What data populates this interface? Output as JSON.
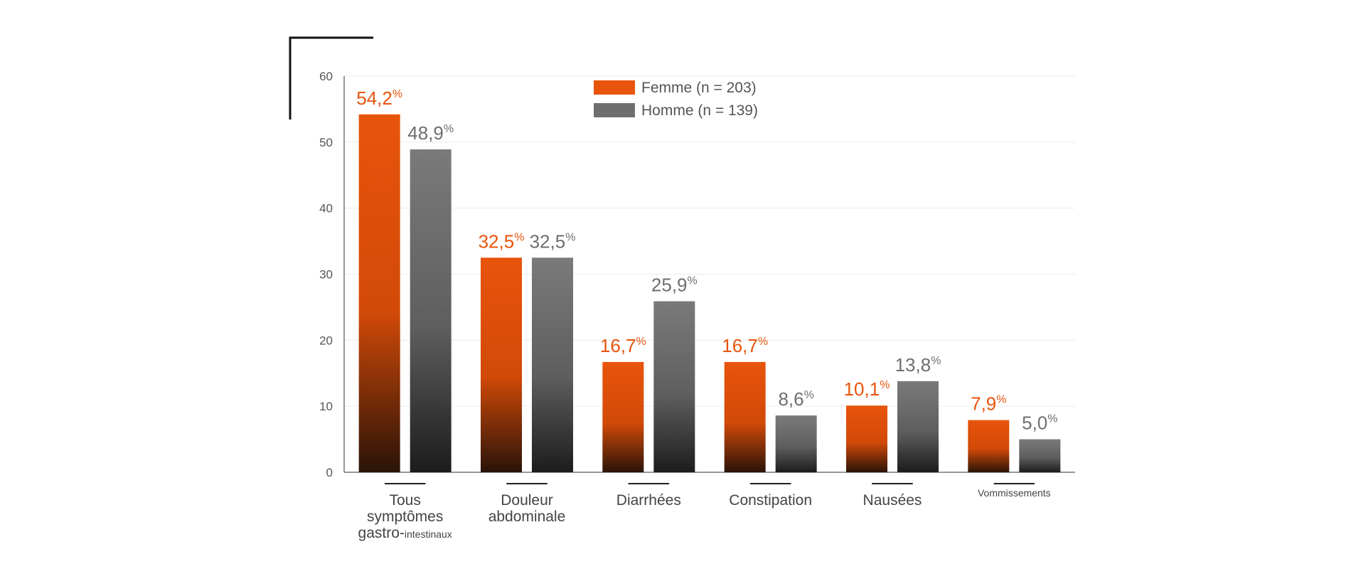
{
  "chart_data": {
    "type": "bar",
    "ylim": [
      0,
      60
    ],
    "yticks": [
      0,
      10,
      20,
      30,
      40,
      50,
      60
    ],
    "grid": true,
    "legend_position": "top-center",
    "categories": [
      {
        "main": "Tous symptômes",
        "second": "gastro-",
        "small": "intestinaux"
      },
      {
        "main": "Douleur",
        "second": "abdominale"
      },
      {
        "main": "Diarrhées"
      },
      {
        "main": "Constipation"
      },
      {
        "main": "Nausées"
      },
      {
        "main": "",
        "small": "Vommissements"
      }
    ],
    "series": [
      {
        "name": "Femme (n = 203)",
        "color": "#e8540c",
        "values": [
          54.2,
          32.5,
          16.7,
          16.7,
          10.1,
          7.9
        ],
        "labels": [
          "54,2",
          "32,5",
          "16,7",
          "16,7",
          "10,1",
          "7,9"
        ]
      },
      {
        "name": "Homme (n = 139)",
        "color": "#6e6e6e",
        "values": [
          48.9,
          32.5,
          25.9,
          8.6,
          13.8,
          5.0
        ],
        "labels": [
          "48,9",
          "32,5",
          "25,9",
          "8,6",
          "13,8",
          "5,0"
        ]
      }
    ],
    "unit_suffix": "%"
  }
}
